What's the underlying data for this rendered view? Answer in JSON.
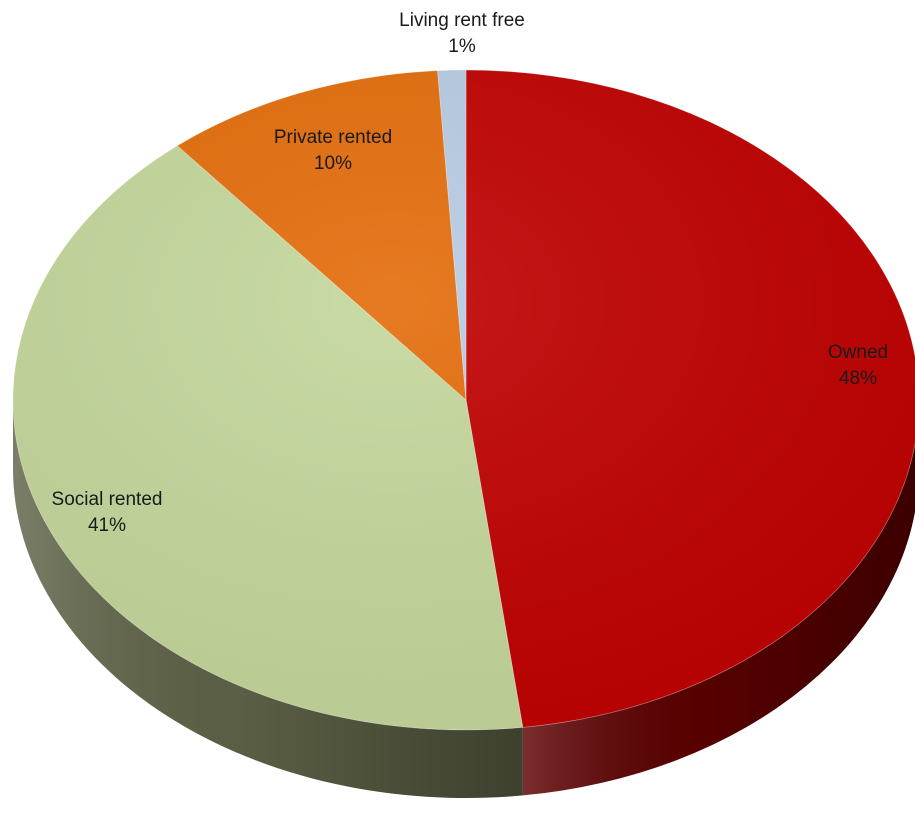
{
  "chart_data": {
    "type": "pie",
    "style": "3d",
    "categories": [
      "Owned",
      "Social rented",
      "Private rented",
      "Living rent free"
    ],
    "values": [
      48,
      41,
      10,
      1
    ],
    "value_labels": [
      "48%",
      "41%",
      "10%",
      "1%"
    ],
    "colors": [
      "#c00000",
      "#c4d79b",
      "#e46c0a",
      "#b8cce4"
    ],
    "side_colors": [
      "#5c0000",
      "#5e6347",
      "#8a4104",
      "#8093a9"
    ],
    "legend": "none",
    "data_labels": "category and percent"
  }
}
